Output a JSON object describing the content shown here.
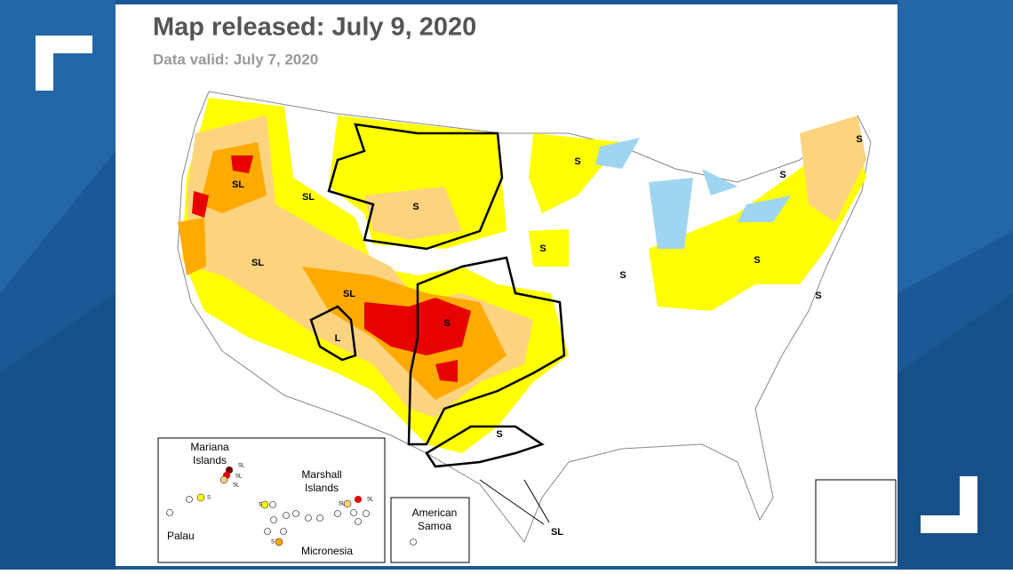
{
  "header": {
    "title": "Map released: July 9, 2020",
    "subtitle": "Data valid: July 7, 2020"
  },
  "map": {
    "labels": [
      "SL",
      "SL",
      "S",
      "SL",
      "SL",
      "L",
      "S",
      "S",
      "SL",
      "S",
      "S",
      "S",
      "S",
      "S",
      "S",
      "S"
    ]
  },
  "inset": {
    "regions": [
      {
        "name": [
          "Mariana",
          "Islands"
        ]
      },
      {
        "name": [
          "Marshall",
          "Islands"
        ]
      },
      {
        "name": [
          "Palau"
        ]
      },
      {
        "name": [
          "Micronesia"
        ]
      },
      {
        "name": [
          "American",
          "Samoa"
        ]
      }
    ],
    "labels": [
      "SL",
      "SL",
      "SL",
      "S",
      "SL",
      "SL",
      "S",
      "S"
    ]
  }
}
